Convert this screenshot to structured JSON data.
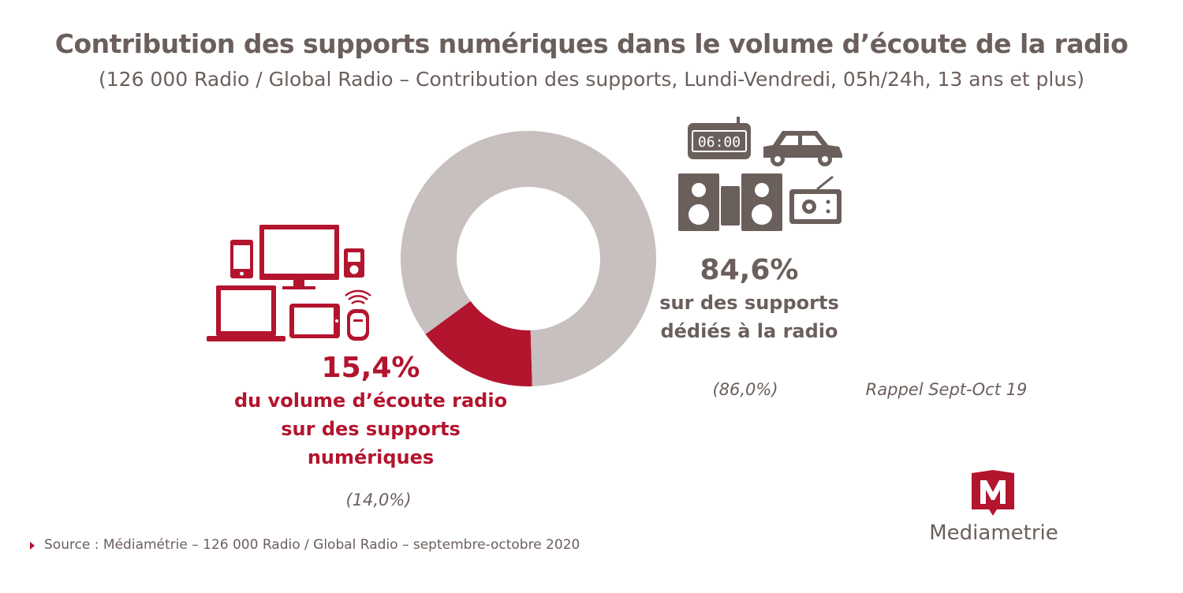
{
  "title": "Contribution des supports numériques dans le volume d’écoute de la radio",
  "subtitle": "(126 000 Radio / Global Radio – Contribution des supports, Lundi-Vendredi, 05h/24h, 13 ans et plus)",
  "chart_data": {
    "type": "pie",
    "donut": true,
    "title": "Contribution des supports numériques dans le volume d’écoute de la radio",
    "series": [
      {
        "label_value": "15,4%",
        "value": 15.4,
        "description": [
          "du volume d’écoute radio",
          "sur des supports",
          "numériques"
        ],
        "previous": "(14,0%)",
        "color": "#b3142e"
      },
      {
        "label_value": "84,6%",
        "value": 84.6,
        "description": [
          "sur des supports",
          "dédiés à la radio"
        ],
        "previous": "(86,0%)",
        "color": "#c7c0bf"
      }
    ],
    "previous_period_label": "Rappel Sept-Oct 19"
  },
  "icons": {
    "digital": [
      "smartphone-icon",
      "monitor-icon",
      "mp3-player-icon",
      "laptop-icon",
      "tablet-icon",
      "smart-speaker-icon"
    ],
    "radio": [
      "alarm-clock-icon",
      "car-icon",
      "hifi-speakers-icon",
      "radio-set-icon"
    ],
    "clock_display": "06:00"
  },
  "source": "Source : Médiamétrie – 126 000 Radio / Global Radio – septembre-octobre 2020",
  "logo": {
    "text": "Mediametrie",
    "letter": "M",
    "color": "#b3142e"
  }
}
